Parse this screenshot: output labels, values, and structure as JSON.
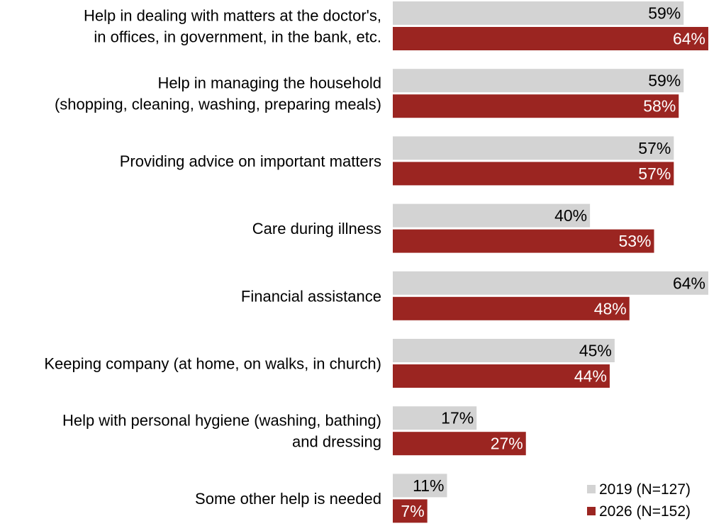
{
  "chart_data": {
    "type": "bar",
    "orientation": "horizontal",
    "categories": [
      [
        "Help in dealing with matters at the doctor's,",
        "in offices, in government, in the bank, etc."
      ],
      [
        "Help in managing the household",
        "(shopping, cleaning, washing, preparing meals)"
      ],
      [
        "Providing advice on important matters"
      ],
      [
        "Care during illness"
      ],
      [
        "Financial assistance"
      ],
      [
        "Keeping company (at home, on walks, in church)"
      ],
      [
        "Help with personal hygiene (washing, bathing)",
        "and dressing"
      ],
      [
        "Some other help is needed"
      ]
    ],
    "series": [
      {
        "name": "2019 (N=127)",
        "color": "#d3d3d3",
        "label_color": "#000000",
        "values": [
          59,
          59,
          57,
          40,
          64,
          45,
          17,
          11
        ]
      },
      {
        "name": "2026 (N=152)",
        "color": "#9b2521",
        "label_color": "#ffffff",
        "values": [
          64,
          58,
          57,
          53,
          48,
          44,
          27,
          7
        ]
      }
    ],
    "value_suffix": "%",
    "xlim": [
      0,
      64
    ],
    "legend_position": "bottom-right",
    "grid": false
  }
}
